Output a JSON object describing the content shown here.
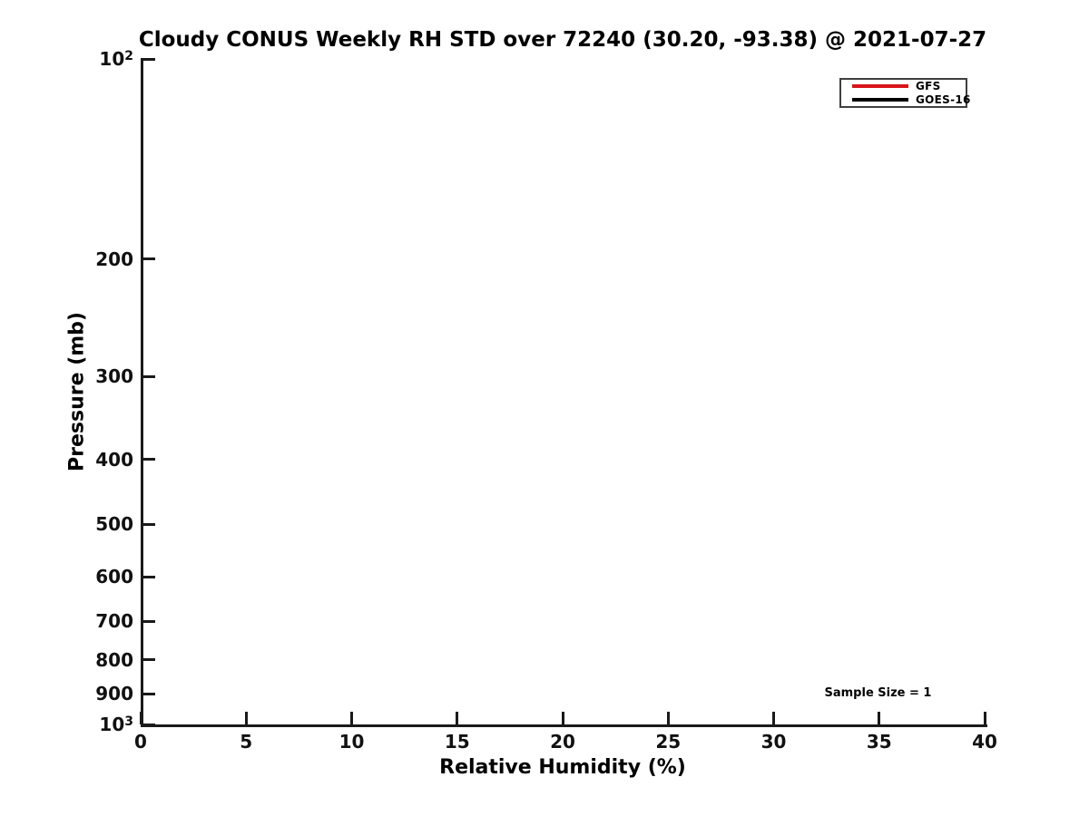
{
  "chart_data": {
    "type": "line",
    "title": "Cloudy CONUS Weekly RH STD over 72240 (30.20, -93.38) @ 2021-07-27",
    "xlabel": "Relative Humidity (%)",
    "ylabel": "Pressure (mb)",
    "xlim": [
      0,
      40
    ],
    "ylim": [
      100,
      1000
    ],
    "xscale": "linear",
    "yscale": "log",
    "y_inverted": true,
    "grid": false,
    "xticks": {
      "values": [
        0,
        5,
        10,
        15,
        20,
        25,
        30,
        35,
        40
      ],
      "labels": [
        "0",
        "5",
        "10",
        "15",
        "20",
        "25",
        "30",
        "35",
        "40"
      ]
    },
    "yticks": {
      "values": [
        100,
        200,
        300,
        400,
        500,
        600,
        700,
        800,
        900,
        1000
      ],
      "labels": [
        "10^2",
        "200",
        "300",
        "400",
        "500",
        "600",
        "700",
        "800",
        "900",
        "10^3"
      ]
    },
    "series": [
      {
        "name": "GFS",
        "color": "#d8141a",
        "x": [],
        "y": []
      },
      {
        "name": "GOES-16",
        "color": "#000000",
        "x": [],
        "y": []
      }
    ],
    "legend": {
      "position": "upper right",
      "entries": [
        {
          "label": "GFS",
          "color": "#d8141a"
        },
        {
          "label": "GOES-16",
          "color": "#000000"
        }
      ]
    },
    "annotations": [
      {
        "text": "Sample Size = 1",
        "x": 35,
        "y": 900
      }
    ]
  },
  "colors": {
    "spine": "#1a1a1a",
    "text": "#000000",
    "background": "#ffffff"
  }
}
